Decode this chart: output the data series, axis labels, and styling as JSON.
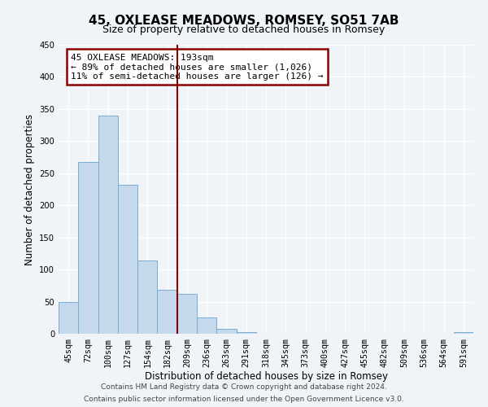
{
  "title": "45, OXLEASE MEADOWS, ROMSEY, SO51 7AB",
  "subtitle": "Size of property relative to detached houses in Romsey",
  "xlabel": "Distribution of detached houses by size in Romsey",
  "ylabel": "Number of detached properties",
  "bin_labels": [
    "45sqm",
    "72sqm",
    "100sqm",
    "127sqm",
    "154sqm",
    "182sqm",
    "209sqm",
    "236sqm",
    "263sqm",
    "291sqm",
    "318sqm",
    "345sqm",
    "373sqm",
    "400sqm",
    "427sqm",
    "455sqm",
    "482sqm",
    "509sqm",
    "536sqm",
    "564sqm",
    "591sqm"
  ],
  "bar_heights": [
    50,
    267,
    340,
    232,
    114,
    68,
    62,
    25,
    7,
    2,
    0,
    0,
    0,
    0,
    0,
    0,
    0,
    0,
    0,
    0,
    2
  ],
  "bar_color": "#c5d9ed",
  "bar_edge_color": "#7aadd4",
  "vline_x_index": 5.5,
  "vline_color": "#8b0000",
  "annotation_line1": "45 OXLEASE MEADOWS: 193sqm",
  "annotation_line2": "← 89% of detached houses are smaller (1,026)",
  "annotation_line3": "11% of semi-detached houses are larger (126) →",
  "annotation_box_color": "#8b0000",
  "ylim": [
    0,
    450
  ],
  "yticks": [
    0,
    50,
    100,
    150,
    200,
    250,
    300,
    350,
    400,
    450
  ],
  "footer_line1": "Contains HM Land Registry data © Crown copyright and database right 2024.",
  "footer_line2": "Contains public sector information licensed under the Open Government Licence v3.0.",
  "bg_color": "#f0f4f8",
  "plot_bg_color": "#f0f4f8"
}
